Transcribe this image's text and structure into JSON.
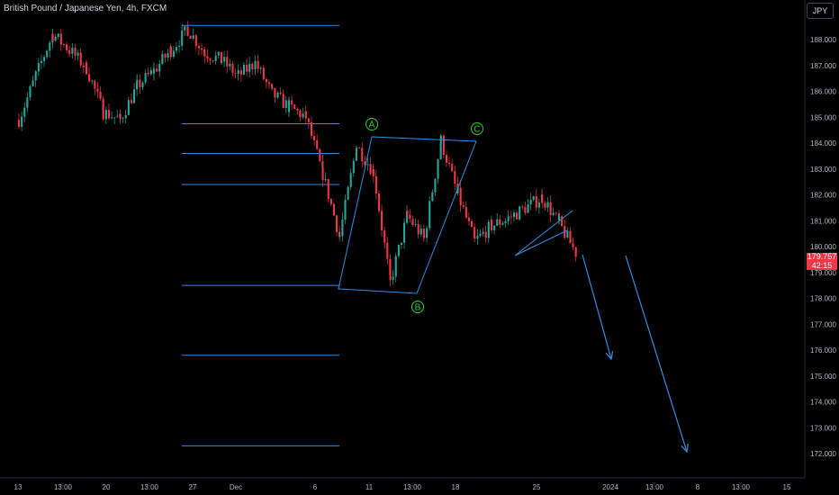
{
  "header": {
    "title": "British Pound / Japanese Yen, 4h, FXCM"
  },
  "currency_button": {
    "label": "JPY"
  },
  "last_price": {
    "price": "179.757",
    "countdown": "42:15"
  },
  "colors": {
    "up": "#26a69a",
    "down": "#f23645",
    "lines": "#2f8ee0",
    "wave_labels": "#2fd12f",
    "background": "#000000"
  },
  "chart_data": {
    "type": "candlestick",
    "symbol": "GBPJPY",
    "interval": "4h",
    "title": "British Pound / Japanese Yen, 4h, FXCM",
    "ylim": [
      171.5,
      189.2
    ],
    "y_ticks": [
      "188.000",
      "187.000",
      "186.000",
      "185.000",
      "184.000",
      "183.000",
      "182.000",
      "181.000",
      "180.000",
      "179.000",
      "178.000",
      "177.000",
      "176.000",
      "175.000",
      "174.000",
      "173.000",
      "172.000"
    ],
    "x_ticks": [
      "13",
      "13:00",
      "20",
      "13:00",
      "27",
      "Dec",
      "6",
      "11",
      "13:00",
      "18",
      "25",
      "2024",
      "13:00",
      "8",
      "13:00",
      "15"
    ],
    "price_path": [
      [
        "2023-11-13",
        184.9
      ],
      [
        "2023-11-14",
        186.6
      ],
      [
        "2023-11-15",
        188.2
      ],
      [
        "2023-11-16",
        187.6
      ],
      [
        "2023-11-17",
        186.9
      ],
      [
        "2023-11-20",
        185.2
      ],
      [
        "2023-11-21",
        184.9
      ],
      [
        "2023-11-22",
        186.2
      ],
      [
        "2023-11-23",
        186.8
      ],
      [
        "2023-11-24",
        187.6
      ],
      [
        "2023-11-27",
        188.4
      ],
      [
        "2023-11-28",
        187.5
      ],
      [
        "2023-11-29",
        187.2
      ],
      [
        "2023-11-30",
        186.6
      ],
      [
        "2023-12-01",
        187.1
      ],
      [
        "2023-12-04",
        185.9
      ],
      [
        "2023-12-05",
        185.4
      ],
      [
        "2023-12-06",
        185.0
      ],
      [
        "2023-12-07",
        182.8
      ],
      [
        "2023-12-08",
        180.4
      ],
      [
        "2023-12-11",
        183.9
      ],
      [
        "2023-12-12",
        182.9
      ],
      [
        "2023-12-13",
        178.6
      ],
      [
        "2023-12-14",
        181.2
      ],
      [
        "2023-12-15",
        180.3
      ],
      [
        "2023-12-18",
        184.1
      ],
      [
        "2023-12-19",
        182.0
      ],
      [
        "2023-12-20",
        180.2
      ],
      [
        "2023-12-21",
        180.8
      ],
      [
        "2023-12-22",
        181.1
      ],
      [
        "2023-12-26",
        181.9
      ],
      [
        "2023-12-27",
        180.9
      ],
      [
        "2023-12-28",
        179.757
      ]
    ],
    "horizontal_levels": [
      188.55,
      184.75,
      183.6,
      182.4,
      178.5,
      175.8,
      172.3
    ],
    "wave_labels": [
      {
        "label": "A",
        "date": "2023-12-11",
        "price": 184.5
      },
      {
        "label": "B",
        "date": "2023-12-13",
        "price": 177.9
      },
      {
        "label": "C",
        "date": "2023-12-18",
        "price": 184.5
      }
    ],
    "projection_arrows": [
      {
        "from": [
          "2023-12-28",
          179.9
        ],
        "to": [
          "2024-01-02",
          175.8
        ]
      },
      {
        "from": [
          "2024-01-03",
          179.85
        ],
        "to": [
          "2024-01-08",
          172.3
        ]
      }
    ],
    "last_price": 179.757,
    "legend": "none",
    "grid": false
  }
}
